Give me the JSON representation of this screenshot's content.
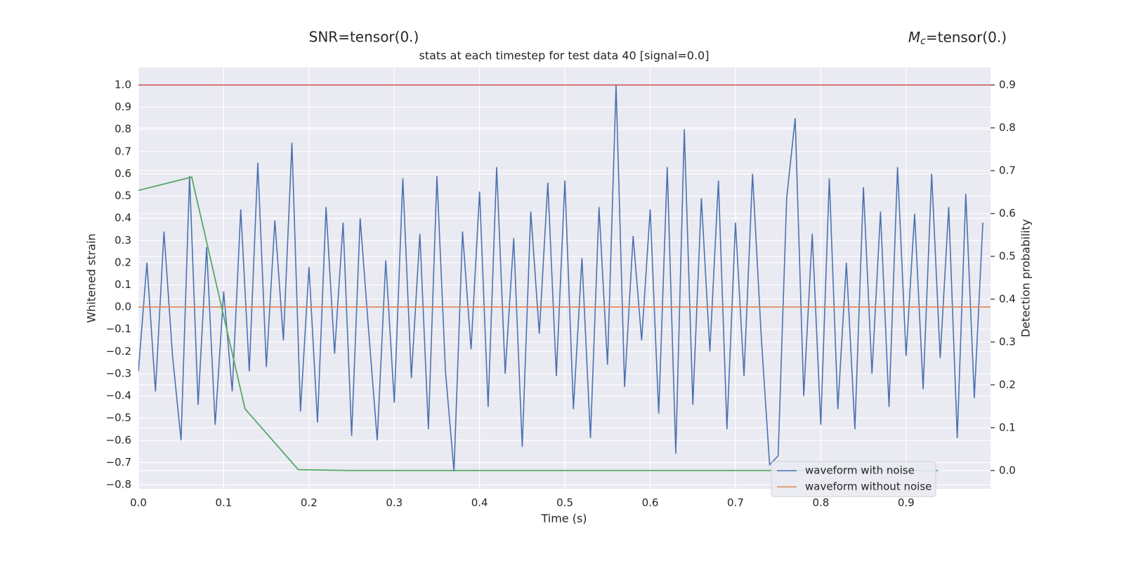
{
  "chart_data": {
    "type": "line",
    "header_left": "SNR=tensor(0.)",
    "header_right": {
      "symbol": "M",
      "subscript": "c",
      "text": "=tensor(0.)"
    },
    "title": "stats at each timestep for test data 40 [signal=0.0]",
    "xlabel": "Time (s)",
    "ylabel": "Whitened strain",
    "y2label": "Detection probability",
    "xlim": [
      0,
      0.999
    ],
    "ylim": [
      -0.819,
      1.079
    ],
    "y2lim": [
      -0.043,
      0.941
    ],
    "xticks": [
      {
        "value": 0,
        "label": "0.0"
      },
      0.1,
      0.2,
      0.3,
      0.4,
      0.5,
      0.6,
      0.7,
      0.8,
      0.9
    ],
    "yticks": [
      {
        "value": -0.8,
        "label": "−0.8"
      },
      {
        "value": -0.7,
        "label": "−0.7"
      },
      {
        "value": -0.6,
        "label": "−0.6"
      },
      {
        "value": -0.5,
        "label": "−0.5"
      },
      {
        "value": -0.4,
        "label": "−0.4"
      },
      {
        "value": -0.3,
        "label": "−0.3"
      },
      {
        "value": -0.2,
        "label": "−0.2"
      },
      {
        "value": -0.1,
        "label": "−0.1"
      },
      {
        "value": 0,
        "label": "0.0"
      },
      0.1,
      0.2,
      0.3,
      0.4,
      0.5,
      0.6,
      0.7,
      0.8,
      0.9,
      {
        "value": 1,
        "label": "1.0"
      }
    ],
    "y2ticks": [
      {
        "value": 0,
        "label": "0.0"
      },
      0.1,
      0.2,
      0.3,
      0.4,
      0.5,
      0.6,
      0.7,
      0.8,
      0.9
    ],
    "grid": true,
    "legend": "lower right",
    "series": [
      {
        "name": "waveform with noise",
        "color": "#4c72b0",
        "x": [
          0.0,
          0.01,
          0.02,
          0.03,
          0.04,
          0.05,
          0.06,
          0.07,
          0.08,
          0.09,
          0.1,
          0.11,
          0.12,
          0.13,
          0.14,
          0.15,
          0.16,
          0.17,
          0.18,
          0.19,
          0.2,
          0.21,
          0.22,
          0.23,
          0.24,
          0.25,
          0.26,
          0.27,
          0.28,
          0.29,
          0.3,
          0.31,
          0.32,
          0.33,
          0.34,
          0.35,
          0.36,
          0.37,
          0.38,
          0.39,
          0.4,
          0.41,
          0.42,
          0.43,
          0.44,
          0.45,
          0.46,
          0.47,
          0.48,
          0.49,
          0.5,
          0.51,
          0.52,
          0.53,
          0.54,
          0.55,
          0.56,
          0.57,
          0.58,
          0.59,
          0.6,
          0.61,
          0.62,
          0.63,
          0.64,
          0.65,
          0.66,
          0.67,
          0.68,
          0.69,
          0.7,
          0.71,
          0.72,
          0.73,
          0.74,
          0.75,
          0.76,
          0.77,
          0.78,
          0.79,
          0.8,
          0.81,
          0.82,
          0.83,
          0.84,
          0.85,
          0.86,
          0.87,
          0.88,
          0.89,
          0.9,
          0.91,
          0.92,
          0.93,
          0.94,
          0.95,
          0.96,
          0.97,
          0.98,
          0.99
        ],
        "values": [
          -0.29,
          0.2,
          -0.38,
          0.34,
          -0.22,
          -0.6,
          0.59,
          -0.44,
          0.27,
          -0.53,
          0.07,
          -0.38,
          0.44,
          -0.29,
          0.65,
          -0.27,
          0.39,
          -0.15,
          0.74,
          -0.47,
          0.18,
          -0.52,
          0.45,
          -0.21,
          0.38,
          -0.58,
          0.4,
          -0.11,
          -0.6,
          0.21,
          -0.43,
          0.58,
          -0.32,
          0.33,
          -0.55,
          0.59,
          -0.29,
          -0.74,
          0.34,
          -0.19,
          0.52,
          -0.45,
          0.63,
          -0.3,
          0.31,
          -0.63,
          0.43,
          -0.12,
          0.56,
          -0.31,
          0.57,
          -0.46,
          0.22,
          -0.59,
          0.45,
          -0.26,
          1.0,
          -0.36,
          0.32,
          -0.15,
          0.44,
          -0.48,
          0.63,
          -0.66,
          0.8,
          -0.44,
          0.49,
          -0.2,
          0.57,
          -0.55,
          0.38,
          -0.31,
          0.6,
          -0.12,
          -0.71,
          -0.67,
          0.49,
          0.85,
          -0.4,
          0.33,
          -0.53,
          0.58,
          -0.46,
          0.2,
          -0.55,
          0.54,
          -0.3,
          0.43,
          -0.45,
          0.63,
          -0.22,
          0.42,
          -0.37,
          0.6,
          -0.23,
          0.45,
          -0.59,
          0.51,
          -0.41,
          0.38
        ]
      },
      {
        "name": "waveform without noise",
        "color": "#dd8452",
        "x": [
          0,
          0.999
        ],
        "values": [
          0,
          0
        ]
      }
    ],
    "detection": {
      "color": "#55a868",
      "axis": "y2",
      "x": [
        0,
        0.0625,
        0.125,
        0.1875,
        0.25,
        0.3125,
        0.375,
        0.4375,
        0.5,
        0.5625,
        0.625,
        0.6875,
        0.75,
        0.8125,
        0.875,
        0.9375
      ],
      "values": [
        0.654,
        0.685,
        0.144,
        0.002,
        0,
        0,
        0,
        0,
        0,
        0,
        0,
        0,
        0,
        0,
        0,
        0
      ]
    },
    "threshold": {
      "color": "#c44e52",
      "axis": "y2",
      "value": 0.9
    }
  }
}
